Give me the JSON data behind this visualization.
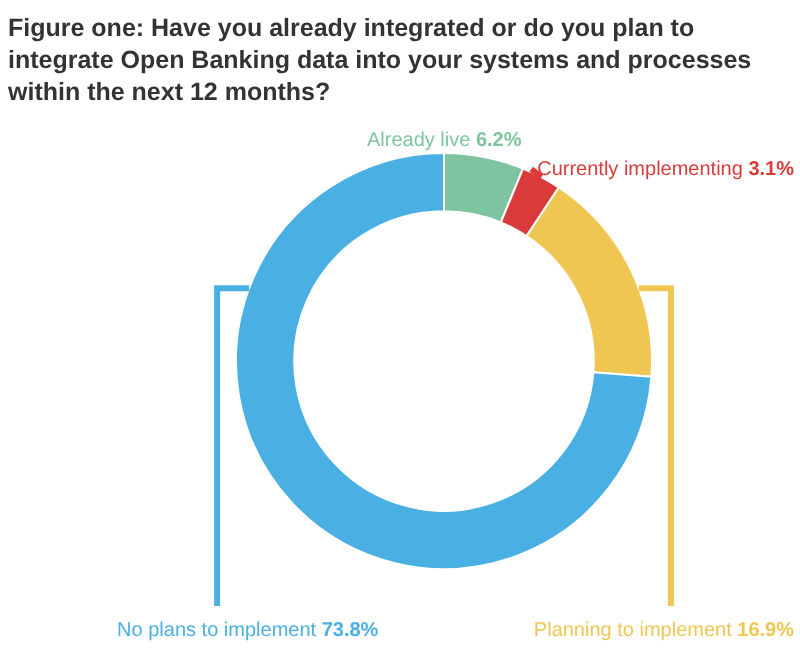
{
  "chart_data": {
    "type": "donut",
    "title": "Figure one: Have you already integrated or do you plan to integrate Open Banking data into your systems and processes within the next 12 months?",
    "categories": [
      "Already live",
      "Currently implementing",
      "Planning to implement",
      "No plans to implement"
    ],
    "values": [
      6.2,
      3.1,
      16.9,
      73.8
    ],
    "value_labels": [
      "6.2%",
      "3.1%",
      "16.9%",
      "73.8%"
    ],
    "colors": [
      "#7fc4a0",
      "#d93b3b",
      "#efc652",
      "#4aafe3"
    ],
    "legend": false
  }
}
